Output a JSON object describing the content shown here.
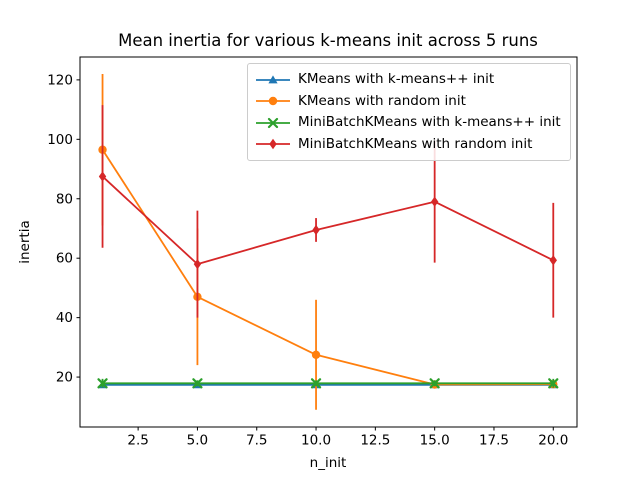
{
  "figure": {
    "background": "#ffffff",
    "text_color": "#000000",
    "frame_color": "#000000"
  },
  "chart_data": {
    "type": "line",
    "title": "Mean inertia for various k-means init across 5 runs",
    "xlabel": "n_init",
    "ylabel": "inertia",
    "x": [
      1,
      5,
      10,
      15,
      20
    ],
    "series": [
      {
        "name": "KMeans with k-means++ init",
        "color": "#1f77b4",
        "marker": "triangle",
        "values": [
          17.4,
          17.4,
          17.4,
          17.4,
          17.4
        ],
        "yerr": [
          0.6,
          0.6,
          0.6,
          0.6,
          0.6
        ]
      },
      {
        "name": "KMeans with random init",
        "color": "#ff7f0e",
        "marker": "circle",
        "values": [
          96.5,
          47.0,
          27.5,
          17.5,
          17.6
        ],
        "yerr": [
          25.5,
          23.0,
          18.5,
          0.6,
          1.2
        ]
      },
      {
        "name": "MiniBatchKMeans with k-means++ init",
        "color": "#2ca02c",
        "marker": "x",
        "values": [
          17.9,
          17.9,
          17.9,
          17.9,
          17.9
        ],
        "yerr": [
          1.5,
          1.0,
          1.0,
          1.0,
          1.5
        ]
      },
      {
        "name": "MiniBatchKMeans with random init",
        "color": "#d62728",
        "marker": "diamond",
        "values": [
          87.5,
          58.0,
          69.5,
          79.0,
          59.3
        ],
        "yerr": [
          24.0,
          18.0,
          4.0,
          20.5,
          19.3
        ]
      }
    ],
    "xticks": [
      "2.5",
      "5.0",
      "7.5",
      "10.0",
      "12.5",
      "15.0",
      "17.5",
      "20.0"
    ],
    "xtick_values": [
      2.5,
      5.0,
      7.5,
      10.0,
      12.5,
      15.0,
      17.5,
      20.0
    ],
    "yticks": [
      "20",
      "40",
      "60",
      "80",
      "100",
      "120"
    ],
    "ytick_values": [
      20,
      40,
      60,
      80,
      100,
      120
    ],
    "xlim": [
      0.05,
      21.0
    ],
    "ylim": [
      3.2,
      127.7
    ],
    "grid": false,
    "legend_position": "upper center inside axes",
    "errorbar_caps": false
  }
}
